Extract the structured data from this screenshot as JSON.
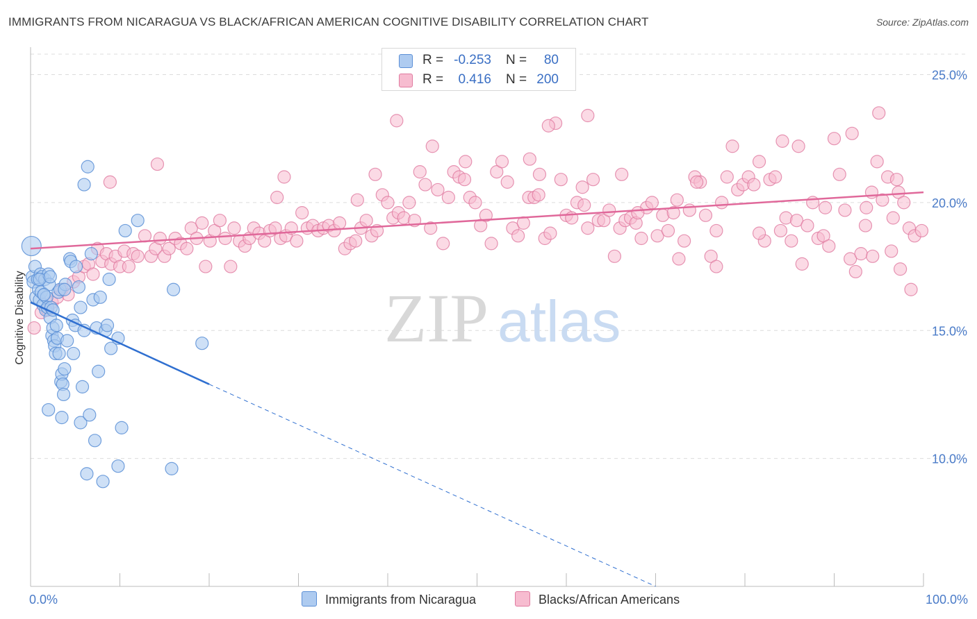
{
  "title": "IMMIGRANTS FROM NICARAGUA VS BLACK/AFRICAN AMERICAN COGNITIVE DISABILITY CORRELATION CHART",
  "source": "Source: ZipAtlas.com",
  "watermark": {
    "zip": "ZIP",
    "atlas": "atlas"
  },
  "colors": {
    "blue": "#5b8fd6",
    "blue_fill": "#aecbf0",
    "blue_line": "#2f6fd0",
    "pink": "#e07ba0",
    "pink_fill": "#f7bcd0",
    "pink_line": "#e0689a",
    "tick_text": "#4a7bc8",
    "grid": "#dcdcdc"
  },
  "legend": {
    "rows": [
      {
        "r_label": "R =",
        "r_value": "-0.253",
        "n_label": "N =",
        "n_value": "80",
        "color": "#aecbf0",
        "border": "#5b8fd6"
      },
      {
        "r_label": "R =",
        "r_value": "0.416",
        "n_label": "N =",
        "n_value": "200",
        "color": "#f7bcd0",
        "border": "#e07ba0"
      }
    ],
    "bottom": [
      {
        "label": "Immigrants from Nicaragua",
        "color": "#aecbf0",
        "border": "#5b8fd6"
      },
      {
        "label": "Blacks/African Americans",
        "color": "#f7bcd0",
        "border": "#e07ba0"
      }
    ]
  },
  "chart_data": {
    "type": "scatter",
    "title": "IMMIGRANTS FROM NICARAGUA VS BLACK/AFRICAN AMERICAN COGNITIVE DISABILITY CORRELATION CHART",
    "xlabel": "",
    "ylabel": "Cognitive Disability",
    "x_tick_labels": [
      "0.0%",
      "100.0%"
    ],
    "y_tick_labels": [
      "10.0%",
      "15.0%",
      "20.0%",
      "25.0%"
    ],
    "y_ticks": [
      10,
      15,
      20,
      25
    ],
    "xlim": [
      0,
      100
    ],
    "ylim": [
      5,
      25.8
    ],
    "grid": true,
    "series": [
      {
        "name": "Immigrants from Nicaragua",
        "r": -0.253,
        "n": 80,
        "trend": {
          "x0": 0,
          "y0": 16.1,
          "x1": 20,
          "y1": 12.9,
          "dashed_to_x": 70,
          "dashed_to_y": 5.0
        },
        "points": [
          [
            0.1,
            18.3
          ],
          [
            0.2,
            17.1
          ],
          [
            0.3,
            16.9
          ],
          [
            0.5,
            17.5
          ],
          [
            0.6,
            16.3
          ],
          [
            0.8,
            17.0
          ],
          [
            0.9,
            16.6
          ],
          [
            1.0,
            16.2
          ],
          [
            1.1,
            17.2
          ],
          [
            1.2,
            16.5
          ],
          [
            1.3,
            17.1
          ],
          [
            1.4,
            16.0
          ],
          [
            1.5,
            16.4
          ],
          [
            1.6,
            17.0
          ],
          [
            1.7,
            15.8
          ],
          [
            1.8,
            16.3
          ],
          [
            1.9,
            15.9
          ],
          [
            2.0,
            17.2
          ],
          [
            2.1,
            16.8
          ],
          [
            2.2,
            15.5
          ],
          [
            2.3,
            15.9
          ],
          [
            2.4,
            14.8
          ],
          [
            2.5,
            15.1
          ],
          [
            2.6,
            14.6
          ],
          [
            2.7,
            14.4
          ],
          [
            2.8,
            14.1
          ],
          [
            2.9,
            15.2
          ],
          [
            3.0,
            14.7
          ],
          [
            3.1,
            16.5
          ],
          [
            3.2,
            14.1
          ],
          [
            3.3,
            16.6
          ],
          [
            3.4,
            13.0
          ],
          [
            3.5,
            13.3
          ],
          [
            3.6,
            12.9
          ],
          [
            3.7,
            12.5
          ],
          [
            3.8,
            13.5
          ],
          [
            3.9,
            16.8
          ],
          [
            4.1,
            14.6
          ],
          [
            4.4,
            17.8
          ],
          [
            4.5,
            17.7
          ],
          [
            4.7,
            15.4
          ],
          [
            4.8,
            14.1
          ],
          [
            5.0,
            15.2
          ],
          [
            5.1,
            17.5
          ],
          [
            5.4,
            16.7
          ],
          [
            5.6,
            15.9
          ],
          [
            5.8,
            12.8
          ],
          [
            6.0,
            15.0
          ],
          [
            6.4,
            21.4
          ],
          [
            6.8,
            18.0
          ],
          [
            7.0,
            16.2
          ],
          [
            7.4,
            15.1
          ],
          [
            7.6,
            13.4
          ],
          [
            7.8,
            16.3
          ],
          [
            8.4,
            15.0
          ],
          [
            8.6,
            15.2
          ],
          [
            8.8,
            17.0
          ],
          [
            9.0,
            14.3
          ],
          [
            9.8,
            14.7
          ],
          [
            10.6,
            18.9
          ],
          [
            12.0,
            19.3
          ],
          [
            16.0,
            16.6
          ],
          [
            19.2,
            14.5
          ],
          [
            2.0,
            11.9
          ],
          [
            3.5,
            11.6
          ],
          [
            5.6,
            11.4
          ],
          [
            6.6,
            11.7
          ],
          [
            7.2,
            10.7
          ],
          [
            10.2,
            11.2
          ],
          [
            9.8,
            9.7
          ],
          [
            15.8,
            9.6
          ],
          [
            6.3,
            9.4
          ],
          [
            8.1,
            9.1
          ],
          [
            6.0,
            20.7
          ],
          [
            1.5,
            16.4
          ],
          [
            2.5,
            15.8
          ],
          [
            3.8,
            16.6
          ],
          [
            1.0,
            17.0
          ],
          [
            2.2,
            17.1
          ]
        ]
      },
      {
        "name": "Blacks/African Americans",
        "r": 0.416,
        "n": 200,
        "trend": {
          "x0": 0,
          "y0": 18.2,
          "x1": 100,
          "y1": 20.4
        },
        "points": [
          [
            0.4,
            15.1
          ],
          [
            1.2,
            15.7
          ],
          [
            1.9,
            15.8
          ],
          [
            2.4,
            16.1
          ],
          [
            3.0,
            16.3
          ],
          [
            3.5,
            16.6
          ],
          [
            4.2,
            16.4
          ],
          [
            4.8,
            16.9
          ],
          [
            5.4,
            17.1
          ],
          [
            6.0,
            17.5
          ],
          [
            6.5,
            17.6
          ],
          [
            7.0,
            17.2
          ],
          [
            7.5,
            18.2
          ],
          [
            8.0,
            17.7
          ],
          [
            8.5,
            18.0
          ],
          [
            9.0,
            17.6
          ],
          [
            9.5,
            17.9
          ],
          [
            10.0,
            17.5
          ],
          [
            10.5,
            18.1
          ],
          [
            11.0,
            17.5
          ],
          [
            11.5,
            18.0
          ],
          [
            12.0,
            17.9
          ],
          [
            12.8,
            18.7
          ],
          [
            13.5,
            17.9
          ],
          [
            14.0,
            18.2
          ],
          [
            14.5,
            18.6
          ],
          [
            15.0,
            17.9
          ],
          [
            15.5,
            18.2
          ],
          [
            16.2,
            18.6
          ],
          [
            16.8,
            18.4
          ],
          [
            17.5,
            18.2
          ],
          [
            18.0,
            19.0
          ],
          [
            18.6,
            18.6
          ],
          [
            19.2,
            19.2
          ],
          [
            19.6,
            17.5
          ],
          [
            20.1,
            18.5
          ],
          [
            20.6,
            18.9
          ],
          [
            21.2,
            19.3
          ],
          [
            21.8,
            18.6
          ],
          [
            22.4,
            17.5
          ],
          [
            22.8,
            19.0
          ],
          [
            23.4,
            18.5
          ],
          [
            24.0,
            18.3
          ],
          [
            24.5,
            18.6
          ],
          [
            25.0,
            19.0
          ],
          [
            25.6,
            18.8
          ],
          [
            26.2,
            18.5
          ],
          [
            26.8,
            18.9
          ],
          [
            27.4,
            19.0
          ],
          [
            28.0,
            18.6
          ],
          [
            28.6,
            18.7
          ],
          [
            29.2,
            19.0
          ],
          [
            29.8,
            18.5
          ],
          [
            30.4,
            19.6
          ],
          [
            31.0,
            19.0
          ],
          [
            31.6,
            19.1
          ],
          [
            32.2,
            18.9
          ],
          [
            32.8,
            19.0
          ],
          [
            33.4,
            19.1
          ],
          [
            34.0,
            18.9
          ],
          [
            34.6,
            19.2
          ],
          [
            35.2,
            18.2
          ],
          [
            35.8,
            18.4
          ],
          [
            36.4,
            18.5
          ],
          [
            37.0,
            19.0
          ],
          [
            37.6,
            19.3
          ],
          [
            38.2,
            18.7
          ],
          [
            38.8,
            18.9
          ],
          [
            39.4,
            20.3
          ],
          [
            40.0,
            20.0
          ],
          [
            40.6,
            19.4
          ],
          [
            41.2,
            19.6
          ],
          [
            41.8,
            19.4
          ],
          [
            42.4,
            20.0
          ],
          [
            43.0,
            19.3
          ],
          [
            43.6,
            21.2
          ],
          [
            44.2,
            20.7
          ],
          [
            45.0,
            22.2
          ],
          [
            45.6,
            20.5
          ],
          [
            46.2,
            18.4
          ],
          [
            46.8,
            20.2
          ],
          [
            47.4,
            21.2
          ],
          [
            48.0,
            21.0
          ],
          [
            48.6,
            20.9
          ],
          [
            49.2,
            20.2
          ],
          [
            49.8,
            20.0
          ],
          [
            50.4,
            19.1
          ],
          [
            51.0,
            19.5
          ],
          [
            51.6,
            18.4
          ],
          [
            52.2,
            21.2
          ],
          [
            52.8,
            21.6
          ],
          [
            53.4,
            20.8
          ],
          [
            54.0,
            19.0
          ],
          [
            54.6,
            18.7
          ],
          [
            55.2,
            19.2
          ],
          [
            55.8,
            20.2
          ],
          [
            56.4,
            20.2
          ],
          [
            57.0,
            21.1
          ],
          [
            57.6,
            18.6
          ],
          [
            58.2,
            18.8
          ],
          [
            58.8,
            23.1
          ],
          [
            59.4,
            20.9
          ],
          [
            60.0,
            19.5
          ],
          [
            60.6,
            19.4
          ],
          [
            61.2,
            20.0
          ],
          [
            61.8,
            20.6
          ],
          [
            62.4,
            19.0
          ],
          [
            63.0,
            20.9
          ],
          [
            63.6,
            19.3
          ],
          [
            64.2,
            19.3
          ],
          [
            64.8,
            19.7
          ],
          [
            65.4,
            17.9
          ],
          [
            66.0,
            19.0
          ],
          [
            66.6,
            19.3
          ],
          [
            67.2,
            19.4
          ],
          [
            67.8,
            19.2
          ],
          [
            68.4,
            18.6
          ],
          [
            69.0,
            19.8
          ],
          [
            69.6,
            20.0
          ],
          [
            70.2,
            18.7
          ],
          [
            70.8,
            19.5
          ],
          [
            71.4,
            18.9
          ],
          [
            72.0,
            19.6
          ],
          [
            72.6,
            17.8
          ],
          [
            73.2,
            18.5
          ],
          [
            73.8,
            19.7
          ],
          [
            74.4,
            21.0
          ],
          [
            75.0,
            20.8
          ],
          [
            75.6,
            19.5
          ],
          [
            76.2,
            17.9
          ],
          [
            76.8,
            17.5
          ],
          [
            77.4,
            20.0
          ],
          [
            78.0,
            21.0
          ],
          [
            78.6,
            22.2
          ],
          [
            79.2,
            20.5
          ],
          [
            79.8,
            20.7
          ],
          [
            80.4,
            21.0
          ],
          [
            81.0,
            20.7
          ],
          [
            81.6,
            21.6
          ],
          [
            82.2,
            18.5
          ],
          [
            82.8,
            20.9
          ],
          [
            83.4,
            21.0
          ],
          [
            84.0,
            18.9
          ],
          [
            84.6,
            19.4
          ],
          [
            85.2,
            18.5
          ],
          [
            85.8,
            19.3
          ],
          [
            86.4,
            17.6
          ],
          [
            87.0,
            19.1
          ],
          [
            87.6,
            20.0
          ],
          [
            88.2,
            18.6
          ],
          [
            88.8,
            18.7
          ],
          [
            89.4,
            18.3
          ],
          [
            90.0,
            22.5
          ],
          [
            90.6,
            21.1
          ],
          [
            91.2,
            19.7
          ],
          [
            91.8,
            17.8
          ],
          [
            92.4,
            17.3
          ],
          [
            93.0,
            18.0
          ],
          [
            93.6,
            19.8
          ],
          [
            94.2,
            20.4
          ],
          [
            94.8,
            21.6
          ],
          [
            95.4,
            20.1
          ],
          [
            96.0,
            21.0
          ],
          [
            96.6,
            19.4
          ],
          [
            97.2,
            20.4
          ],
          [
            97.8,
            20.0
          ],
          [
            98.4,
            19.0
          ],
          [
            99.0,
            18.7
          ],
          [
            8.9,
            20.8
          ],
          [
            14.2,
            21.5
          ],
          [
            27.6,
            20.2
          ],
          [
            28.4,
            21.0
          ],
          [
            36.6,
            20.1
          ],
          [
            38.6,
            21.1
          ],
          [
            44.8,
            19.0
          ],
          [
            56.9,
            20.3
          ],
          [
            62.0,
            19.9
          ],
          [
            68.0,
            19.6
          ],
          [
            72.4,
            20.1
          ],
          [
            84.2,
            22.4
          ],
          [
            86.0,
            22.2
          ],
          [
            92.0,
            22.7
          ],
          [
            95.0,
            23.5
          ],
          [
            97.0,
            20.9
          ],
          [
            76.8,
            18.9
          ],
          [
            74.6,
            20.8
          ],
          [
            81.6,
            18.8
          ],
          [
            89.0,
            19.8
          ],
          [
            99.8,
            18.9
          ],
          [
            97.4,
            17.4
          ],
          [
            98.6,
            16.6
          ],
          [
            96.4,
            18.1
          ],
          [
            94.3,
            17.9
          ],
          [
            93.5,
            19.1
          ],
          [
            66.2,
            21.1
          ],
          [
            41.0,
            23.2
          ],
          [
            62.4,
            23.4
          ],
          [
            58.0,
            23.0
          ],
          [
            48.7,
            21.6
          ],
          [
            55.9,
            21.7
          ]
        ]
      }
    ]
  }
}
